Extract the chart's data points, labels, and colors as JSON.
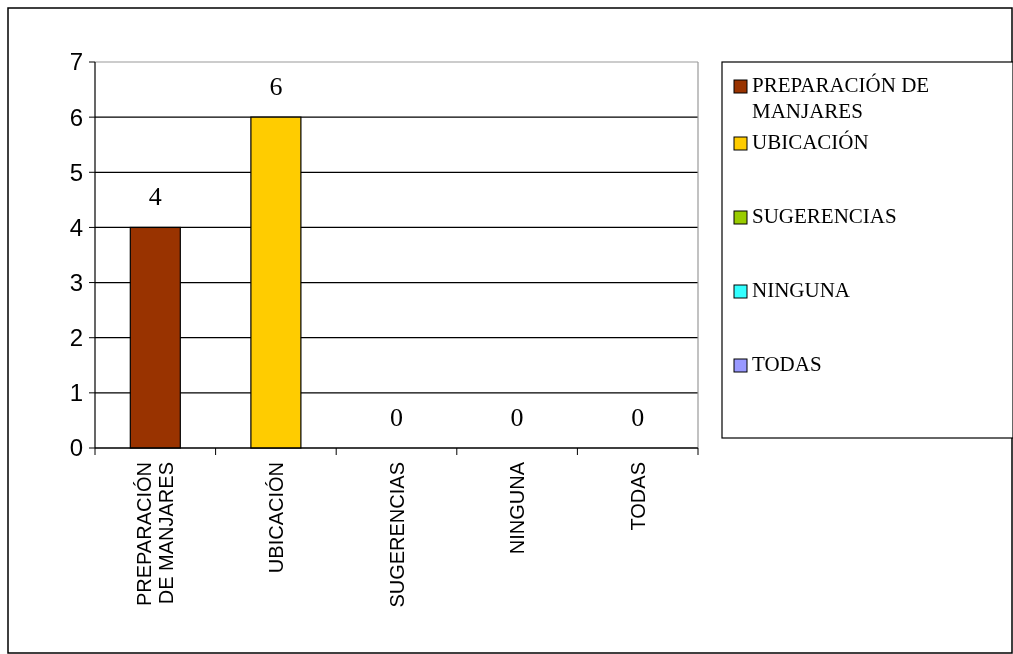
{
  "chart_data": {
    "type": "bar",
    "categories": [
      "PREPARACIÓN DE MANJARES",
      "UBICACIÓN",
      "SUGERENCIAS",
      "NINGUNA",
      "TODAS"
    ],
    "series": [
      {
        "name": "PREPARACIÓN DE MANJARES",
        "color": "#993300",
        "values": [
          4,
          null,
          null,
          null,
          null
        ]
      },
      {
        "name": "UBICACIÓN",
        "color": "#ffcc00",
        "values": [
          null,
          6,
          null,
          null,
          null
        ]
      },
      {
        "name": "SUGERENCIAS",
        "color": "#99cc00",
        "values": [
          null,
          null,
          0,
          null,
          null
        ]
      },
      {
        "name": "NINGUNA",
        "color": "#33ffff",
        "values": [
          null,
          null,
          null,
          0,
          null
        ]
      },
      {
        "name": "TODAS",
        "color": "#9999ff",
        "values": [
          null,
          null,
          null,
          null,
          0
        ]
      }
    ],
    "ylim": [
      0,
      7
    ],
    "yticks": [
      0,
      1,
      2,
      3,
      4,
      5,
      6,
      7
    ],
    "grid": "y",
    "legend": "right",
    "data_labels": true
  }
}
